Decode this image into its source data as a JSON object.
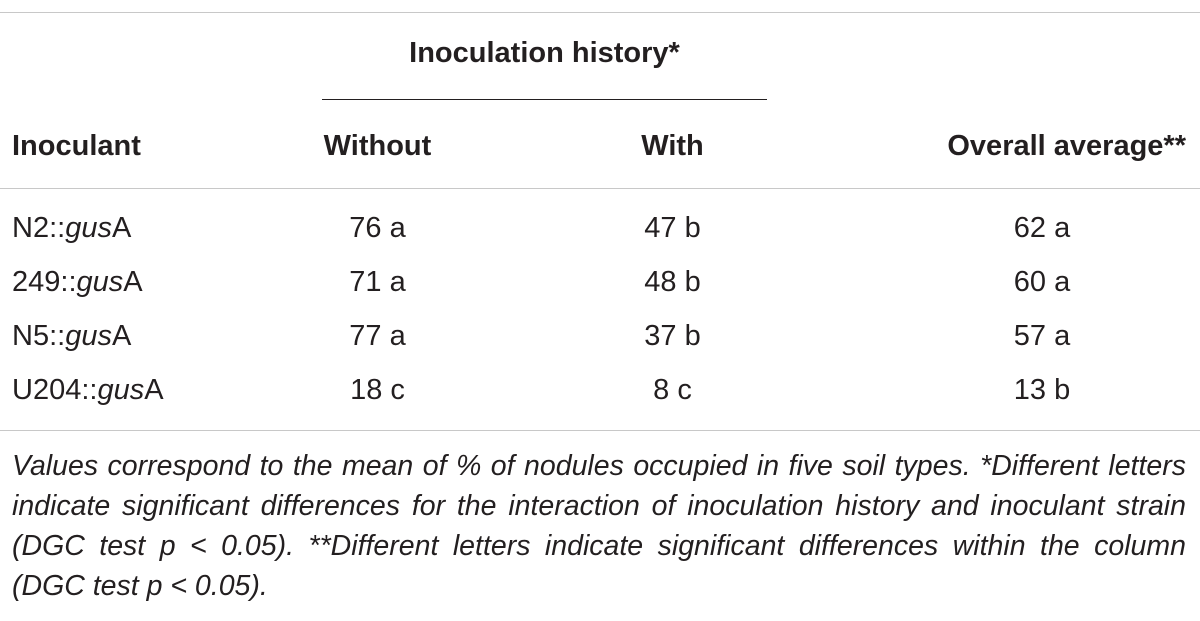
{
  "table": {
    "group_header": "Inoculation history*",
    "headers": {
      "inoculant": "Inoculant",
      "without": "Without",
      "with": "With",
      "overall": "Overall average**"
    },
    "rows": [
      {
        "prefix": "N2::",
        "gene": "gus",
        "suffix": "A",
        "without": "76 a",
        "with": "47 b",
        "overall": "62 a"
      },
      {
        "prefix": "249::",
        "gene": "gus",
        "suffix": "A",
        "without": "71 a",
        "with": "48 b",
        "overall": "60 a"
      },
      {
        "prefix": "N5::",
        "gene": "gus",
        "suffix": "A",
        "without": "77 a",
        "with": "37 b",
        "overall": "57 a"
      },
      {
        "prefix": "U204::",
        "gene": "gus",
        "suffix": "A",
        "without": "18 c",
        "with": "8 c",
        "overall": "13 b"
      }
    ]
  },
  "footnote": {
    "line1": "Values correspond to the mean of % of nodules occupied in five soil types. *Different letters indicate significant differences for the interaction of inoculation history and inoculant strain (DGC test p < 0.05). **Different letters indicate significant differences within the column (DGC test p < 0.05)."
  }
}
